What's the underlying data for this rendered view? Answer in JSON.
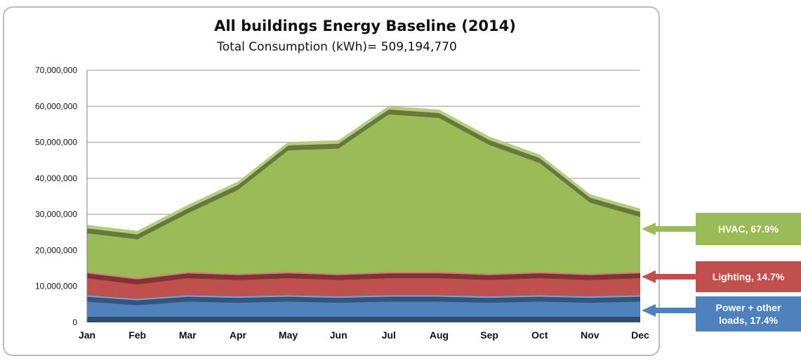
{
  "chart_data": {
    "type": "area",
    "title": "All buildings  Energy Baseline  (2014)",
    "subtitle": "Total Consumption (kWh)= 509,194,770",
    "categories": [
      "Jan",
      "Feb",
      "Mar",
      "Apr",
      "May",
      "Jun",
      "Jul",
      "Aug",
      "Sep",
      "Oct",
      "Nov",
      "Dec"
    ],
    "stacked": true,
    "ylim": [
      0,
      70000000
    ],
    "yticks": [
      "0",
      "10,000,000",
      "20,000,000",
      "30,000,000",
      "40,000,000",
      "50,000,000",
      "60,000,000",
      "70,000,000"
    ],
    "grid": true,
    "series": [
      {
        "name": "Power + other loads, 17.4%",
        "color": "#4f81bd",
        "values": [
          7500000,
          6500000,
          7500000,
          7200000,
          7500000,
          7200000,
          7500000,
          7500000,
          7200000,
          7500000,
          7200000,
          7500000
        ]
      },
      {
        "name": "Lighting, 14.7%",
        "color": "#c0504d",
        "values": [
          6500000,
          5800000,
          6500000,
          6300000,
          6500000,
          6300000,
          6500000,
          6500000,
          6300000,
          6500000,
          6300000,
          6500000
        ]
      },
      {
        "name": "HVAC, 67.9%",
        "color": "#9bbb59",
        "values": [
          12500000,
          12500000,
          18000000,
          25000000,
          35500000,
          36500000,
          45500000,
          44500000,
          37500000,
          32000000,
          21500000,
          17000000
        ]
      }
    ]
  },
  "labels": [
    {
      "text_lines": [
        "HVAC, 67.9%"
      ],
      "color": "#9bbb59"
    },
    {
      "text_lines": [
        "Lighting, 14.7%"
      ],
      "color": "#c0504d"
    },
    {
      "text_lines": [
        "Power + other",
        "loads, 17.4%"
      ],
      "color": "#4f81bd"
    }
  ]
}
